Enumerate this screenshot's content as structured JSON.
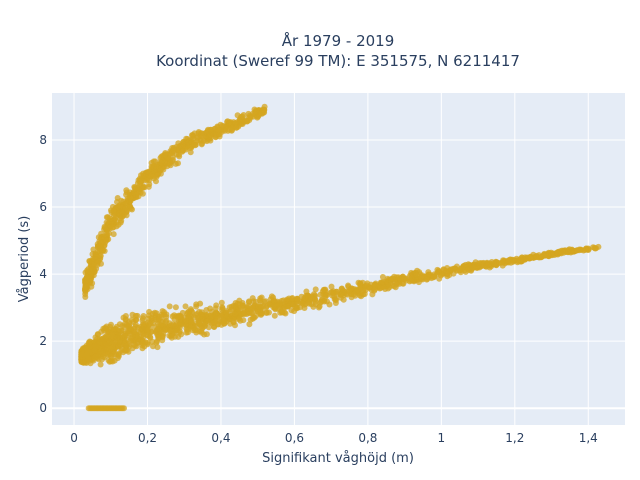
{
  "title_line1": "År 1979 - 2019",
  "title_line2": "Koordinat (Sweref 99 TM): E 351575, N 6211417",
  "chart_data": {
    "type": "scatter",
    "xlabel": "Signifikant våghöjd (m)",
    "ylabel": "Vågperiod (s)",
    "xlim": [
      -0.06,
      1.5
    ],
    "ylim": [
      -0.5,
      9.4
    ],
    "xticks": [
      0,
      0.2,
      0.4,
      0.6,
      0.8,
      1,
      1.2,
      1.4
    ],
    "xtick_labels": [
      "0",
      "0,2",
      "0,4",
      "0,6",
      "0,8",
      "1",
      "1,2",
      "1,4"
    ],
    "yticks": [
      0,
      2,
      4,
      6,
      8
    ],
    "ytick_labels": [
      "0",
      "2",
      "4",
      "6",
      "8"
    ],
    "grid": true,
    "marker_color": "#d4a520",
    "background": "#e5ecf6",
    "clusters": [
      {
        "name_hidden": "zero_period_band",
        "x_range": [
          0.04,
          0.14
        ],
        "y": 0
      },
      {
        "name_hidden": "main_swell_band",
        "x": [
          0.02,
          0.05,
          0.1,
          0.15,
          0.2,
          0.3,
          0.4,
          0.5,
          0.6,
          0.7,
          0.8,
          0.9,
          1.0,
          1.1,
          1.2,
          1.3,
          1.43
        ],
        "y_center": [
          1.55,
          1.7,
          1.95,
          2.15,
          2.3,
          2.55,
          2.75,
          2.95,
          3.15,
          3.35,
          3.6,
          3.85,
          4.05,
          4.25,
          4.4,
          4.6,
          4.8
        ],
        "y_spread": [
          0.25,
          0.5,
          0.8,
          0.85,
          0.8,
          0.6,
          0.5,
          0.45,
          0.4,
          0.35,
          0.3,
          0.25,
          0.2,
          0.15,
          0.12,
          0.1,
          0.05
        ]
      },
      {
        "name_hidden": "wind_sea_band",
        "x": [
          0.03,
          0.06,
          0.1,
          0.15,
          0.2,
          0.25,
          0.3,
          0.35,
          0.4,
          0.45,
          0.52
        ],
        "y_center": [
          3.6,
          4.5,
          5.5,
          6.2,
          6.9,
          7.4,
          7.8,
          8.1,
          8.3,
          8.55,
          8.9
        ],
        "y_spread": [
          0.5,
          0.7,
          0.6,
          0.55,
          0.5,
          0.45,
          0.4,
          0.35,
          0.3,
          0.25,
          0.15
        ]
      }
    ]
  }
}
